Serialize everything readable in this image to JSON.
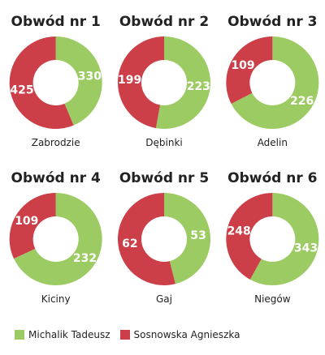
{
  "palette": {
    "green": "#9ccb63",
    "red": "#cc3f48",
    "label_color": "#ffffff",
    "text_color": "#222222"
  },
  "legend": [
    {
      "name": "Michalik Tadeusz",
      "color": "#9ccb63"
    },
    {
      "name": "Sosnowska Agnieszka",
      "color": "#cc3f48"
    }
  ],
  "chart_data": [
    {
      "type": "pie",
      "title": "Obwód nr 1",
      "xlabel": "Zabrodzie",
      "series": [
        {
          "name": "Michalik Tadeusz",
          "value": 330
        },
        {
          "name": "Sosnowska Agnieszka",
          "value": 425
        }
      ]
    },
    {
      "type": "pie",
      "title": "Obwód nr 2",
      "xlabel": "Dębinki",
      "series": [
        {
          "name": "Michalik Tadeusz",
          "value": 223
        },
        {
          "name": "Sosnowska Agnieszka",
          "value": 199
        }
      ]
    },
    {
      "type": "pie",
      "title": "Obwód nr 3",
      "xlabel": "Adelin",
      "series": [
        {
          "name": "Michalik Tadeusz",
          "value": 226
        },
        {
          "name": "Sosnowska Agnieszka",
          "value": 109
        }
      ]
    },
    {
      "type": "pie",
      "title": "Obwód nr 4",
      "xlabel": "Kiciny",
      "series": [
        {
          "name": "Michalik Tadeusz",
          "value": 232
        },
        {
          "name": "Sosnowska Agnieszka",
          "value": 109
        }
      ]
    },
    {
      "type": "pie",
      "title": "Obwód nr 5",
      "xlabel": "Gaj",
      "series": [
        {
          "name": "Michalik Tadeusz",
          "value": 53
        },
        {
          "name": "Sosnowska Agnieszka",
          "value": 62
        }
      ]
    },
    {
      "type": "pie",
      "title": "Obwód nr 6",
      "xlabel": "Niegów",
      "series": [
        {
          "name": "Michalik Tadeusz",
          "value": 343
        },
        {
          "name": "Sosnowska Agnieszka",
          "value": 248
        }
      ]
    }
  ]
}
